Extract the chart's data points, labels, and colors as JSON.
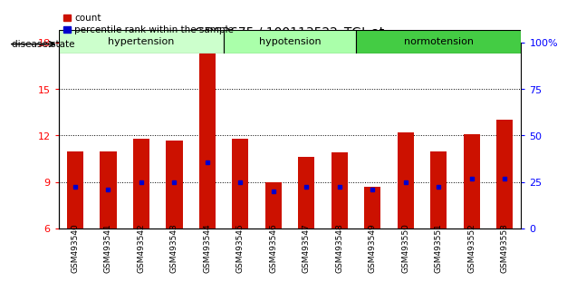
{
  "title": "GDS3675 / 100113522_TGI_at",
  "samples": [
    "GSM493540",
    "GSM493541",
    "GSM493542",
    "GSM493543",
    "GSM493544",
    "GSM493545",
    "GSM493546",
    "GSM493547",
    "GSM493548",
    "GSM493549",
    "GSM493550",
    "GSM493551",
    "GSM493552",
    "GSM493553"
  ],
  "count_values": [
    11.0,
    11.0,
    11.8,
    11.7,
    17.8,
    11.8,
    9.0,
    10.6,
    10.9,
    8.7,
    12.2,
    11.0,
    12.1,
    13.0
  ],
  "percentile_values": [
    8.7,
    8.5,
    9.0,
    9.0,
    10.3,
    9.0,
    8.4,
    8.7,
    8.7,
    8.5,
    9.0,
    8.7,
    9.2,
    9.2
  ],
  "bar_color": "#cc1100",
  "dot_color": "#0000cc",
  "y_min": 6,
  "y_max": 18,
  "y_ticks": [
    6,
    9,
    12,
    15,
    18
  ],
  "y2_ticks_labels": [
    "0",
    "25",
    "50",
    "75",
    "100%"
  ],
  "y2_tick_positions": [
    6,
    9,
    12,
    15,
    18
  ],
  "groups": [
    {
      "label": "hypertension",
      "start": 0,
      "end": 5,
      "color": "#ccffcc"
    },
    {
      "label": "hypotension",
      "start": 5,
      "end": 9,
      "color": "#aaffaa"
    },
    {
      "label": "normotension",
      "start": 9,
      "end": 14,
      "color": "#44cc44"
    }
  ],
  "disease_state_label": "disease state",
  "legend_count": "count",
  "legend_percentile": "percentile rank within the sample",
  "bar_width": 0.5,
  "background_color": "#ffffff"
}
